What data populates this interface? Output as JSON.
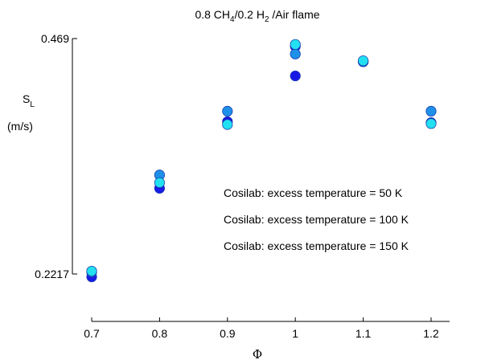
{
  "chart_data": {
    "type": "scatter",
    "title": {
      "prefix": "0.8 CH",
      "sub1": "4",
      "middle": "/0.2 H",
      "sub2": "2",
      "suffix": " /Air flame"
    },
    "ylabel": {
      "main": "S",
      "sub": "L",
      "unit": "(m/s)"
    },
    "xlabel": "Φ",
    "ylim": [
      0.2217,
      0.469
    ],
    "yticks": [
      "0.2217",
      "0.469"
    ],
    "xlim": [
      0.7,
      1.2
    ],
    "xticks": [
      "0.7",
      "0.8",
      "0.9",
      "1",
      "1.1",
      "1.2"
    ],
    "x": [
      0.7,
      0.8,
      0.9,
      1.0,
      1.1,
      1.2
    ],
    "legend": {
      "placement": "right"
    },
    "series": [
      {
        "name": "Cosilab: excess temperature = 150 K",
        "color": "#1a1ae6",
        "values": [
          0.2187,
          0.3117,
          0.3817,
          0.4608,
          0.4447,
          0.3807
        ]
      },
      {
        "name": "Cosilab: excess temperature = 100 K",
        "color": "#1e90e8",
        "values": [
          0.2237,
          0.3257,
          0.3927,
          0.4528,
          0.4447,
          0.3927
        ]
      },
      {
        "name": "Cosilab: excess temperature = 50 K",
        "color": "#22e0f0",
        "values": [
          0.2247,
          0.3177,
          0.3787,
          0.4628,
          0.4457,
          0.3797
        ]
      }
    ],
    "extra_points": [
      {
        "series": 0,
        "x": 1.0,
        "y": 0.4298
      }
    ]
  }
}
